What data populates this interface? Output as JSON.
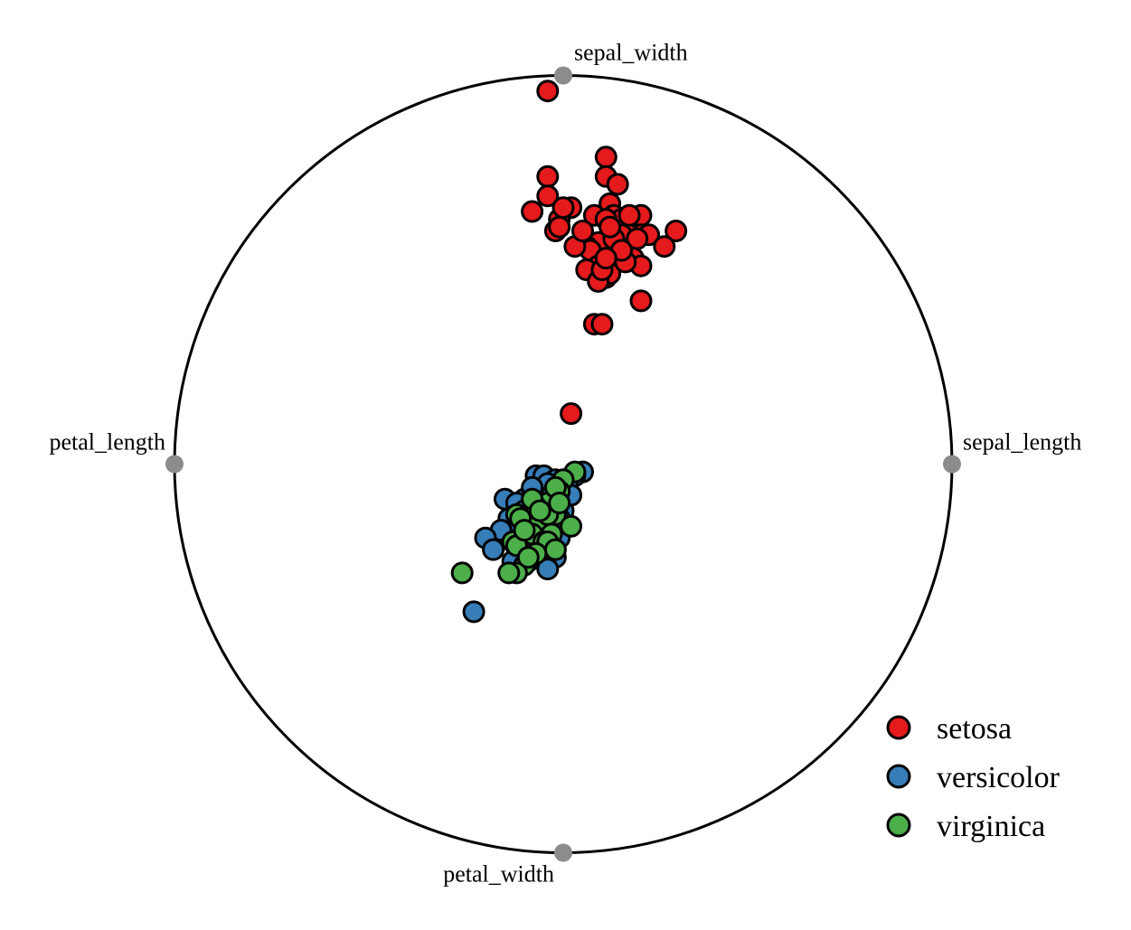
{
  "chart_data": {
    "type": "scatter",
    "title": "",
    "xlim": [
      -1,
      1
    ],
    "ylim": [
      -1,
      1
    ],
    "grid": false,
    "legend_position": "bottom-right",
    "anchors": [
      {
        "name": "sepal_length",
        "x": 1.0,
        "y": 0.0,
        "color": "#8c8c8c"
      },
      {
        "name": "sepal_width",
        "x": 0.0,
        "y": 1.0,
        "color": "#8c8c8c"
      },
      {
        "name": "petal_length",
        "x": -1.0,
        "y": 0.0,
        "color": "#8c8c8c"
      },
      {
        "name": "petal_width",
        "x": 0.0,
        "y": -1.0,
        "color": "#8c8c8c"
      }
    ],
    "series": [
      {
        "name": "setosa",
        "color": "#e41a1c",
        "points": [
          [
            -0.04,
            0.96
          ],
          [
            0.11,
            0.79
          ],
          [
            0.11,
            0.74
          ],
          [
            0.14,
            0.72
          ],
          [
            -0.04,
            0.74
          ],
          [
            -0.04,
            0.69
          ],
          [
            -0.08,
            0.65
          ],
          [
            0.02,
            0.66
          ],
          [
            0.12,
            0.67
          ],
          [
            0.08,
            0.64
          ],
          [
            0.13,
            0.64
          ],
          [
            0.2,
            0.64
          ],
          [
            0.15,
            0.63
          ],
          [
            0.11,
            0.63
          ],
          [
            -0.01,
            0.63
          ],
          [
            0.29,
            0.6
          ],
          [
            0.2,
            0.59
          ],
          [
            0.17,
            0.59
          ],
          [
            0.15,
            0.59
          ],
          [
            0.22,
            0.59
          ],
          [
            0.19,
            0.58
          ],
          [
            -0.02,
            0.6
          ],
          [
            0.09,
            0.57
          ],
          [
            0.06,
            0.56
          ],
          [
            0.26,
            0.56
          ],
          [
            -0.01,
            0.61
          ],
          [
            0.07,
            0.55
          ],
          [
            0.03,
            0.56
          ],
          [
            0.14,
            0.56
          ],
          [
            0.18,
            0.53
          ],
          [
            0.09,
            0.51
          ],
          [
            0.06,
            0.5
          ],
          [
            0.14,
            0.52
          ],
          [
            0.2,
            0.51
          ],
          [
            0.11,
            0.48
          ],
          [
            0.12,
            0.49
          ],
          [
            0.09,
            0.47
          ],
          [
            0.1,
            0.5
          ],
          [
            0.2,
            0.42
          ],
          [
            0.08,
            0.36
          ],
          [
            0.1,
            0.36
          ],
          [
            0.13,
            0.58
          ],
          [
            0.16,
            0.52
          ],
          [
            0.05,
            0.6
          ],
          [
            0.15,
            0.55
          ],
          [
            0.12,
            0.61
          ],
          [
            0.0,
            0.66
          ],
          [
            0.17,
            0.64
          ],
          [
            0.11,
            0.53
          ],
          [
            0.02,
            0.13
          ]
        ]
      },
      {
        "name": "versicolor",
        "color": "#377eb8",
        "points": [
          [
            -0.07,
            -0.03
          ],
          [
            -0.05,
            -0.03
          ],
          [
            0.05,
            -0.02
          ],
          [
            0.03,
            -0.03
          ],
          [
            -0.02,
            -0.04
          ],
          [
            -0.04,
            -0.05
          ],
          [
            0.01,
            -0.05
          ],
          [
            -0.01,
            -0.07
          ],
          [
            -0.15,
            -0.09
          ],
          [
            -0.1,
            -0.09
          ],
          [
            -0.12,
            -0.1
          ],
          [
            -0.07,
            -0.1
          ],
          [
            -0.02,
            -0.1
          ],
          [
            0.0,
            -0.12
          ],
          [
            -0.06,
            -0.12
          ],
          [
            -0.14,
            -0.14
          ],
          [
            -0.09,
            -0.14
          ],
          [
            -0.12,
            -0.16
          ],
          [
            -0.03,
            -0.16
          ],
          [
            -0.16,
            -0.17
          ],
          [
            -0.2,
            -0.19
          ],
          [
            -0.11,
            -0.19
          ],
          [
            -0.05,
            -0.2
          ],
          [
            -0.01,
            -0.19
          ],
          [
            -0.18,
            -0.22
          ],
          [
            -0.08,
            -0.22
          ],
          [
            -0.02,
            -0.24
          ],
          [
            -0.13,
            -0.25
          ],
          [
            -0.04,
            -0.27
          ],
          [
            -0.23,
            -0.38
          ],
          [
            -0.08,
            -0.06
          ],
          [
            -0.03,
            -0.08
          ],
          [
            -0.1,
            -0.12
          ],
          [
            -0.06,
            -0.15
          ],
          [
            -0.13,
            -0.2
          ],
          [
            -0.09,
            -0.25
          ],
          [
            -0.04,
            -0.21
          ],
          [
            -0.06,
            -0.18
          ],
          [
            -0.01,
            -0.14
          ],
          [
            0.02,
            -0.08
          ]
        ]
      },
      {
        "name": "virginica",
        "color": "#4daf4a",
        "points": [
          [
            0.03,
            -0.02
          ],
          [
            0.0,
            -0.04
          ],
          [
            -0.01,
            -0.07
          ],
          [
            -0.04,
            -0.1
          ],
          [
            -0.07,
            -0.11
          ],
          [
            -0.12,
            -0.13
          ],
          [
            -0.11,
            -0.14
          ],
          [
            -0.04,
            -0.14
          ],
          [
            -0.02,
            -0.13
          ],
          [
            -0.06,
            -0.15
          ],
          [
            -0.04,
            -0.13
          ],
          [
            0.02,
            -0.16
          ],
          [
            -0.03,
            -0.18
          ],
          [
            -0.08,
            -0.18
          ],
          [
            -0.05,
            -0.2
          ],
          [
            -0.13,
            -0.2
          ],
          [
            -0.12,
            -0.21
          ],
          [
            -0.04,
            -0.2
          ],
          [
            -0.02,
            -0.22
          ],
          [
            -0.07,
            -0.23
          ],
          [
            -0.1,
            -0.26
          ],
          [
            -0.12,
            -0.28
          ],
          [
            -0.14,
            -0.28
          ],
          [
            -0.26,
            -0.28
          ],
          [
            -0.1,
            -0.17
          ],
          [
            -0.08,
            -0.09
          ],
          [
            -0.02,
            -0.06
          ],
          [
            -0.09,
            -0.24
          ],
          [
            -0.06,
            -0.12
          ],
          [
            -0.01,
            -0.1
          ]
        ]
      }
    ]
  }
}
